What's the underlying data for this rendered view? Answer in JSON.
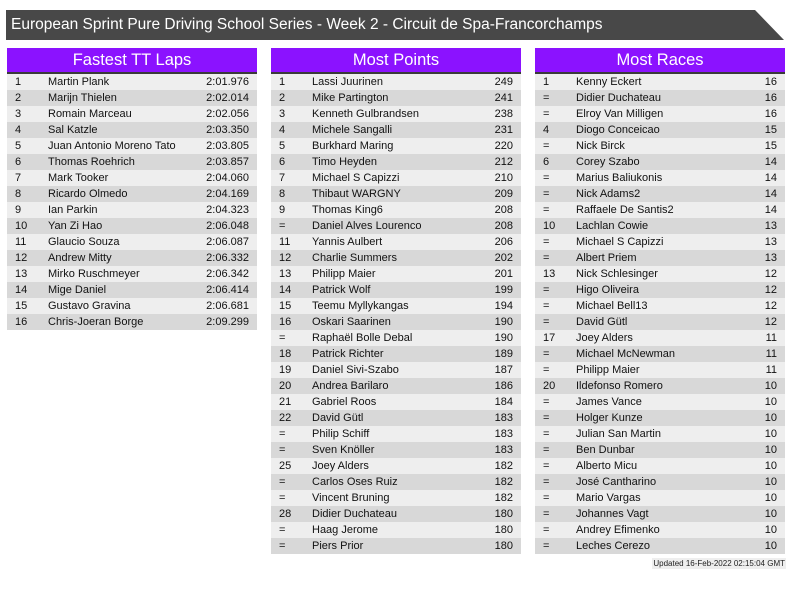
{
  "title": "European Sprint Pure Driving School Series - Week 2 - Circuit de Spa-Francorchamps",
  "updated": "Updated 16-Feb-2022 02:15:04 GMT",
  "colors": {
    "header": "#8b12ff",
    "title_bar": "#484848"
  },
  "tables": [
    {
      "heading": "Fastest TT Laps",
      "rows": [
        [
          "1",
          "Martin Plank",
          "2:01.976"
        ],
        [
          "2",
          "Marijn Thielen",
          "2:02.014"
        ],
        [
          "3",
          "Romain Marceau",
          "2:02.056"
        ],
        [
          "4",
          "Sal Katzle",
          "2:03.350"
        ],
        [
          "5",
          "Juan Antonio Moreno Tato",
          "2:03.805"
        ],
        [
          "6",
          "Thomas Roehrich",
          "2:03.857"
        ],
        [
          "7",
          "Mark Tooker",
          "2:04.060"
        ],
        [
          "8",
          "Ricardo Olmedo",
          "2:04.169"
        ],
        [
          "9",
          "Ian Parkin",
          "2:04.323"
        ],
        [
          "10",
          "Yan Zi Hao",
          "2:06.048"
        ],
        [
          "11",
          "Glaucio Souza",
          "2:06.087"
        ],
        [
          "12",
          "Andrew Mitty",
          "2:06.332"
        ],
        [
          "13",
          "Mirko Ruschmeyer",
          "2:06.342"
        ],
        [
          "14",
          "Mige Daniel",
          "2:06.414"
        ],
        [
          "15",
          "Gustavo Gravina",
          "2:06.681"
        ],
        [
          "16",
          "Chris-Joeran Borge",
          "2:09.299"
        ]
      ]
    },
    {
      "heading": "Most Points",
      "rows": [
        [
          "1",
          "Lassi Juurinen",
          "249"
        ],
        [
          "2",
          "Mike Partington",
          "241"
        ],
        [
          "3",
          "Kenneth Gulbrandsen",
          "238"
        ],
        [
          "4",
          "Michele Sangalli",
          "231"
        ],
        [
          "5",
          "Burkhard Maring",
          "220"
        ],
        [
          "6",
          "Timo Heyden",
          "212"
        ],
        [
          "7",
          "Michael S Capizzi",
          "210"
        ],
        [
          "8",
          "Thibaut WARGNY",
          "209"
        ],
        [
          "9",
          "Thomas King6",
          "208"
        ],
        [
          "=",
          "Daniel Alves Lourenco",
          "208"
        ],
        [
          "11",
          "Yannis Aulbert",
          "206"
        ],
        [
          "12",
          "Charlie Summers",
          "202"
        ],
        [
          "13",
          "Philipp Maier",
          "201"
        ],
        [
          "14",
          "Patrick Wolf",
          "199"
        ],
        [
          "15",
          "Teemu Myllykangas",
          "194"
        ],
        [
          "16",
          "Oskari Saarinen",
          "190"
        ],
        [
          "=",
          "Raphaël Bolle Debal",
          "190"
        ],
        [
          "18",
          "Patrick Richter",
          "189"
        ],
        [
          "19",
          "Daniel Sivi-Szabo",
          "187"
        ],
        [
          "20",
          "Andrea Barilaro",
          "186"
        ],
        [
          "21",
          "Gabriel Roos",
          "184"
        ],
        [
          "22",
          "David Gütl",
          "183"
        ],
        [
          "=",
          "Philip Schiff",
          "183"
        ],
        [
          "=",
          "Sven Knöller",
          "183"
        ],
        [
          "25",
          "Joey Alders",
          "182"
        ],
        [
          "=",
          "Carlos Oses Ruiz",
          "182"
        ],
        [
          "=",
          "Vincent Bruning",
          "182"
        ],
        [
          "28",
          "Didier Duchateau",
          "180"
        ],
        [
          "=",
          "Haag Jerome",
          "180"
        ],
        [
          "=",
          "Piers Prior",
          "180"
        ]
      ]
    },
    {
      "heading": "Most Races",
      "rows": [
        [
          "1",
          "Kenny Eckert",
          "16"
        ],
        [
          "=",
          "Didier Duchateau",
          "16"
        ],
        [
          "=",
          "Elroy Van Milligen",
          "16"
        ],
        [
          "4",
          "Diogo Conceicao",
          "15"
        ],
        [
          "=",
          "Nick Birck",
          "15"
        ],
        [
          "6",
          "Corey Szabo",
          "14"
        ],
        [
          "=",
          "Marius Baliukonis",
          "14"
        ],
        [
          "=",
          "Nick Adams2",
          "14"
        ],
        [
          "=",
          "Raffaele De Santis2",
          "14"
        ],
        [
          "10",
          "Lachlan Cowie",
          "13"
        ],
        [
          "=",
          "Michael S Capizzi",
          "13"
        ],
        [
          "=",
          "Albert Priem",
          "13"
        ],
        [
          "13",
          "Nick Schlesinger",
          "12"
        ],
        [
          "=",
          "Higo Oliveira",
          "12"
        ],
        [
          "=",
          "Michael Bell13",
          "12"
        ],
        [
          "=",
          "David Gütl",
          "12"
        ],
        [
          "17",
          "Joey Alders",
          "11"
        ],
        [
          "=",
          "Michael McNewman",
          "11"
        ],
        [
          "=",
          "Philipp Maier",
          "11"
        ],
        [
          "20",
          "Ildefonso Romero",
          "10"
        ],
        [
          "=",
          "James Vance",
          "10"
        ],
        [
          "=",
          "Holger Kunze",
          "10"
        ],
        [
          "=",
          "Julian San Martin",
          "10"
        ],
        [
          "=",
          "Ben Dunbar",
          "10"
        ],
        [
          "=",
          "Alberto Micu",
          "10"
        ],
        [
          "=",
          "José Cantharino",
          "10"
        ],
        [
          "=",
          "Mario Vargas",
          "10"
        ],
        [
          "=",
          "Johannes Vagt",
          "10"
        ],
        [
          "=",
          "Andrey Efimenko",
          "10"
        ],
        [
          "=",
          "Leches Cerezo",
          "10"
        ]
      ]
    }
  ]
}
